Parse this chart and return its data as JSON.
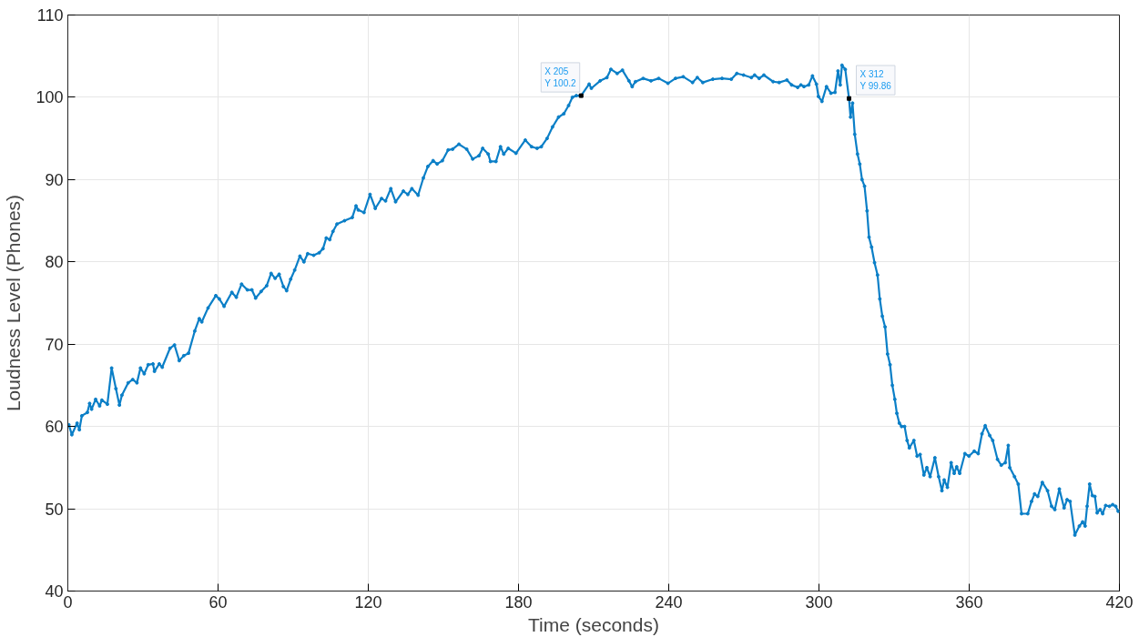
{
  "chart_data": {
    "type": "line",
    "xlabel": "Time (seconds)",
    "ylabel": "Loudness Level (Phones)",
    "xlim": [
      0,
      420
    ],
    "ylim": [
      40,
      110
    ],
    "xticks": [
      0,
      60,
      120,
      180,
      240,
      300,
      360,
      420
    ],
    "yticks": [
      40,
      50,
      60,
      70,
      80,
      90,
      100,
      110
    ],
    "grid": true,
    "marker": "circle",
    "line_style": "solid",
    "annotations": [
      {
        "text": "X 205\nY 100.2",
        "x": 205,
        "y": 100.2
      },
      {
        "text": "X 312\nY 99.86",
        "x": 312,
        "y": 99.86
      }
    ],
    "series": [
      {
        "color": "#0b7fc7",
        "x": [
          0.4,
          1.6,
          3.7,
          4.6,
          5.6,
          7.8,
          8.7,
          9.5,
          11.1,
          12.7,
          13.6,
          15.8,
          17.5,
          19.2,
          20.6,
          21.6,
          24.1,
          25.9,
          27.6,
          29,
          30.5,
          32.1,
          34,
          34.6,
          36.5,
          37.7,
          40.8,
          42.6,
          44.5,
          46.3,
          48.2,
          50.7,
          52.5,
          53.5,
          56,
          59.1,
          60.5,
          62.4,
          65.5,
          67.3,
          69.4,
          71.7,
          73.5,
          75,
          77.2,
          79.4,
          81.2,
          82.8,
          84.4,
          86.1,
          87.4,
          89,
          90.6,
          92.7,
          94.3,
          95.8,
          98.2,
          100.4,
          101.9,
          103.2,
          104.6,
          105.9,
          107.5,
          110.5,
          113.6,
          115.1,
          116,
          118.3,
          120.7,
          122.8,
          125.3,
          126.9,
          129,
          130.9,
          134,
          135.8,
          137.4,
          139.9,
          142,
          143.8,
          145.9,
          147.5,
          149.6,
          151.9,
          153.7,
          156.2,
          159.3,
          161.7,
          164.2,
          165.7,
          167.9,
          168.8,
          171,
          172.8,
          174.1,
          175.9,
          179,
          182.7,
          185.2,
          187.4,
          189.1,
          191.4,
          193.6,
          196,
          198.1,
          200,
          201.5,
          203.1,
          205,
          208.2,
          209.1,
          212.6,
          215.3,
          216.9,
          219.4,
          221.5,
          224.1,
          225.4,
          226.7,
          229.8,
          232.9,
          236,
          239.7,
          242.7,
          245.8,
          249.5,
          251.4,
          253.6,
          257.6,
          261.3,
          265,
          267.2,
          269.9,
          273,
          274.3,
          276.1,
          278,
          281.7,
          284.1,
          287.2,
          289.1,
          291.5,
          292.8,
          294,
          295.9,
          297.4,
          299,
          299.8,
          301.2,
          303,
          304.8,
          306.4,
          307.6,
          308.5,
          309.2,
          310.5,
          312,
          312.6,
          313.4,
          314.3,
          315.4,
          316.3,
          317.2,
          318.2,
          319.2,
          320,
          321,
          322.2,
          323.4,
          324.3,
          325.3,
          326.4,
          327.4,
          328.4,
          329.3,
          330.3,
          331.1,
          332.1,
          333,
          334.2,
          335.2,
          336.1,
          337.9,
          339.2,
          340.4,
          341.9,
          343.1,
          344.4,
          346.3,
          347.8,
          349.1,
          350,
          351.3,
          352.8,
          354,
          355,
          356.2,
          358.3,
          359.9,
          362,
          363.6,
          365.1,
          366.4,
          368.2,
          369.4,
          371.3,
          372.8,
          374.4,
          375.6,
          376.2,
          378.1,
          379.6,
          380.9,
          383.4,
          384.9,
          386.1,
          387.4,
          389.2,
          391.3,
          392.9,
          394.2,
          396,
          397.9,
          399.1,
          400.3,
          402.2,
          404,
          405.3,
          406.3,
          407.1,
          408.1,
          409.2,
          410.2,
          411.1,
          412.3,
          413.3,
          414.5,
          416,
          417.3,
          418.5,
          419.5
        ],
        "values": [
          60.2,
          59.0,
          60.4,
          59.6,
          61.3,
          61.7,
          62.8,
          62.1,
          63.3,
          62.5,
          63.2,
          62.7,
          67.1,
          64.6,
          62.6,
          63.8,
          65.3,
          65.7,
          65.3,
          67.1,
          66.4,
          67.5,
          67.6,
          66.7,
          67.6,
          67.2,
          69.5,
          69.9,
          68.0,
          68.6,
          68.9,
          71.6,
          73.1,
          72.7,
          74.4,
          75.9,
          75.5,
          74.6,
          76.3,
          75.7,
          77.3,
          76.6,
          76.6,
          75.6,
          76.4,
          77.1,
          78.6,
          78.0,
          78.5,
          77.0,
          76.5,
          77.9,
          79.0,
          80.7,
          80.0,
          81.0,
          80.8,
          81.1,
          81.6,
          82.9,
          82.7,
          83.7,
          84.6,
          85.0,
          85.4,
          86.8,
          86.3,
          86.0,
          88.2,
          86.5,
          87.7,
          87.4,
          88.9,
          87.3,
          88.6,
          88.2,
          88.9,
          88.1,
          90.2,
          91.6,
          92.3,
          91.9,
          92.3,
          93.6,
          93.7,
          94.3,
          93.7,
          92.5,
          92.9,
          93.8,
          93.1,
          92.2,
          92.2,
          94.0,
          93.1,
          93.8,
          93.2,
          94.8,
          94.0,
          93.8,
          94.0,
          95.0,
          96.4,
          97.6,
          98.0,
          99.0,
          100.0,
          100.2,
          100.2,
          101.6,
          101.1,
          102.0,
          102.4,
          103.4,
          102.9,
          103.3,
          102.0,
          101.3,
          101.9,
          102.3,
          102.0,
          102.3,
          101.7,
          102.3,
          102.5,
          101.8,
          102.4,
          101.8,
          102.2,
          102.3,
          102.2,
          102.9,
          102.7,
          102.4,
          102.7,
          102.3,
          102.7,
          101.9,
          101.8,
          102.1,
          101.5,
          101.2,
          101.5,
          101.3,
          101.5,
          102.6,
          101.6,
          100.1,
          99.5,
          101.3,
          100.5,
          100.6,
          103.2,
          101.5,
          103.9,
          103.4,
          99.86,
          97.6,
          99.3,
          95.5,
          93.1,
          91.9,
          90.0,
          89.2,
          86.2,
          83.0,
          81.8,
          79.9,
          78.4,
          75.5,
          73.4,
          72.1,
          68.8,
          67.5,
          65.0,
          63.3,
          61.6,
          60.4,
          60.0,
          60.0,
          58.3,
          57.4,
          58.3,
          56.4,
          56.6,
          54.1,
          55.0,
          53.9,
          56.2,
          53.9,
          52.2,
          53.5,
          52.6,
          55.6,
          54.3,
          55.1,
          54.3,
          56.7,
          56.4,
          57.0,
          56.7,
          59.1,
          60.1,
          58.9,
          58.3,
          56.0,
          55.3,
          55.6,
          57.7,
          55.0,
          53.9,
          53.0,
          49.4,
          49.4,
          50.9,
          51.8,
          51.5,
          53.2,
          52.2,
          50.3,
          49.9,
          52.4,
          50.1,
          51.1,
          50.9,
          46.8,
          47.9,
          48.4,
          47.9,
          50.3,
          53.0,
          51.6,
          51.5,
          49.5,
          49.9,
          49.4,
          50.4,
          50.3,
          50.5,
          50.3,
          49.7
        ]
      }
    ]
  }
}
